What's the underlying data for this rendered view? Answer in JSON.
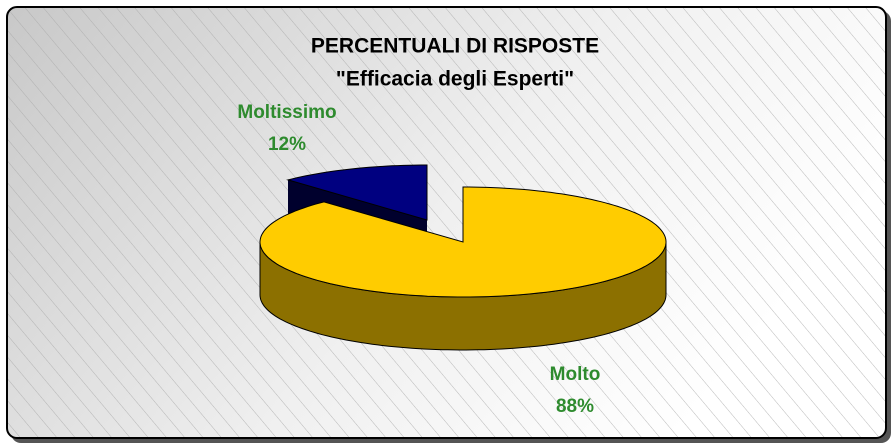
{
  "chart_data": {
    "type": "pie",
    "title": "PERCENTUALI DI RISPOSTE",
    "subtitle": "\"Efficacia degli Esperti\"",
    "categories": [
      "Moltissimo",
      "Molto"
    ],
    "values": [
      12,
      88
    ],
    "value_labels": [
      "12%",
      "88%"
    ],
    "colors": [
      "#000080",
      "#ffcc00"
    ],
    "label_color": "#2e8b2e"
  }
}
